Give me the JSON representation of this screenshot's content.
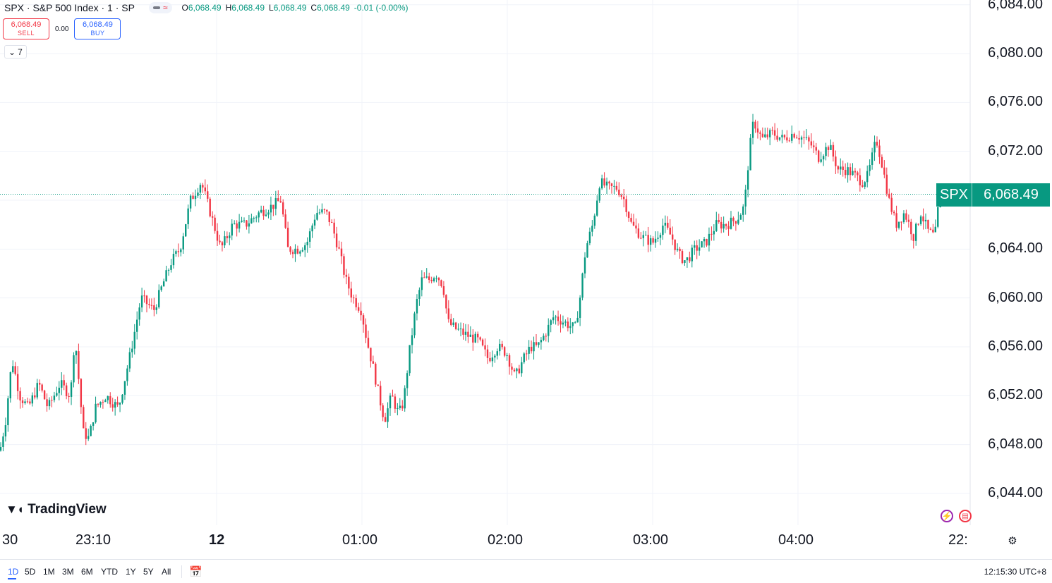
{
  "header": {
    "title": "SPX · S&P 500 Index · 1 · SP",
    "ohlc": [
      {
        "label": "O",
        "value": "6,068.49"
      },
      {
        "label": "H",
        "value": "6,068.49"
      },
      {
        "label": "L",
        "value": "6,068.49"
      },
      {
        "label": "C",
        "value": "6,068.49"
      }
    ],
    "change": "-0.01 (-0.00%)"
  },
  "trade": {
    "sell_price": "6,068.49",
    "sell_label": "SELL",
    "spread": "0.00",
    "buy_price": "6,068.49",
    "buy_label": "BUY"
  },
  "indicators_toggle": "7",
  "logo_text": "TradingView",
  "last_price": {
    "symbol": "SPX",
    "value": "6,068.49"
  },
  "price_axis_labels": [
    "6,084.00",
    "6,080.00",
    "6,076.00",
    "6,072.00",
    "6,068.00",
    "6,064.00",
    "6,060.00",
    "6,056.00",
    "6,052.00",
    "6,048.00",
    "6,044.00"
  ],
  "time_axis": [
    {
      "label": "30",
      "bold": false
    },
    {
      "label": "23:10",
      "bold": false
    },
    {
      "label": "12",
      "bold": true
    },
    {
      "label": "01:00",
      "bold": false
    },
    {
      "label": "02:00",
      "bold": false
    },
    {
      "label": "03:00",
      "bold": false
    },
    {
      "label": "04:00",
      "bold": false
    },
    {
      "label": "22:",
      "bold": false
    }
  ],
  "ranges": [
    "1D",
    "5D",
    "1M",
    "3M",
    "6M",
    "YTD",
    "1Y",
    "5Y",
    "All"
  ],
  "active_range": "1D",
  "clock": "12:15:30 UTC+8",
  "colors": {
    "up": "#089981",
    "down": "#f23645",
    "grid": "#f0f3fa",
    "accent": "#2962ff"
  },
  "icons": {
    "flash": "flash-icon",
    "flag": "us-flag-icon",
    "settings": "gear-icon",
    "calendar": "calendar-goto-icon"
  },
  "chart_data": {
    "type": "candlestick",
    "title": "SPX · S&P 500 Index · 1 · SP",
    "y_range": [
      6042.0,
      6084.5
    ],
    "x_labels": [
      "30",
      "23:10",
      "12",
      "01:00",
      "02:00",
      "03:00",
      "04:00",
      "22:"
    ],
    "close_path": [
      [
        0,
        6047.5
      ],
      [
        8,
        6050.0
      ],
      [
        17,
        6055.0
      ],
      [
        28,
        6052.0
      ],
      [
        40,
        6051.0
      ],
      [
        55,
        6053.0
      ],
      [
        68,
        6051.0
      ],
      [
        85,
        6053.0
      ],
      [
        100,
        6052.0
      ],
      [
        106,
        6057.0
      ],
      [
        118,
        6049.0
      ],
      [
        126,
        6048.5
      ],
      [
        135,
        6051.0
      ],
      [
        150,
        6052.0
      ],
      [
        168,
        6051.0
      ],
      [
        185,
        6055.5
      ],
      [
        200,
        6060.0
      ],
      [
        218,
        6059.0
      ],
      [
        230,
        6061.0
      ],
      [
        243,
        6063.0
      ],
      [
        255,
        6064.0
      ],
      [
        270,
        6068.0
      ],
      [
        285,
        6069.5
      ],
      [
        298,
        6067.0
      ],
      [
        313,
        6064.0
      ],
      [
        330,
        6066.0
      ],
      [
        348,
        6066.0
      ],
      [
        368,
        6067.0
      ],
      [
        385,
        6067.5
      ],
      [
        398,
        6068.0
      ],
      [
        408,
        6064.0
      ],
      [
        422,
        6064.0
      ],
      [
        435,
        6064.5
      ],
      [
        448,
        6067.0
      ],
      [
        462,
        6067.0
      ],
      [
        470,
        6066.0
      ],
      [
        480,
        6064.0
      ],
      [
        490,
        6061.5
      ],
      [
        500,
        6060.0
      ],
      [
        512,
        6059.0
      ],
      [
        520,
        6056.5
      ],
      [
        530,
        6054.0
      ],
      [
        537,
        6052.0
      ],
      [
        545,
        6050.0
      ],
      [
        555,
        6052.0
      ],
      [
        565,
        6050.5
      ],
      [
        572,
        6051.5
      ],
      [
        580,
        6055.5
      ],
      [
        590,
        6059.5
      ],
      [
        598,
        6061.5
      ],
      [
        608,
        6061.5
      ],
      [
        618,
        6062.0
      ],
      [
        628,
        6061.0
      ],
      [
        635,
        6058.0
      ],
      [
        645,
        6057.5
      ],
      [
        660,
        6057.0
      ],
      [
        678,
        6056.5
      ],
      [
        692,
        6055.0
      ],
      [
        705,
        6056.0
      ],
      [
        718,
        6055.5
      ],
      [
        730,
        6053.5
      ],
      [
        742,
        6055.0
      ],
      [
        752,
        6056.0
      ],
      [
        762,
        6056.0
      ],
      [
        772,
        6057.0
      ],
      [
        785,
        6058.5
      ],
      [
        800,
        6058.0
      ],
      [
        815,
        6057.5
      ],
      [
        822,
        6060.0
      ],
      [
        830,
        6064.0
      ],
      [
        840,
        6066.0
      ],
      [
        850,
        6069.5
      ],
      [
        862,
        6069.0
      ],
      [
        875,
        6069.0
      ],
      [
        885,
        6068.0
      ],
      [
        895,
        6066.0
      ],
      [
        910,
        6065.0
      ],
      [
        925,
        6064.5
      ],
      [
        940,
        6066.0
      ],
      [
        952,
        6065.0
      ],
      [
        962,
        6063.5
      ],
      [
        972,
        6063.0
      ],
      [
        985,
        6064.0
      ],
      [
        1000,
        6064.5
      ],
      [
        1015,
        6066.0
      ],
      [
        1030,
        6066.0
      ],
      [
        1045,
        6066.5
      ],
      [
        1055,
        6067.5
      ],
      [
        1062,
        6072.0
      ],
      [
        1068,
        6074.5
      ],
      [
        1080,
        6073.0
      ],
      [
        1095,
        6073.5
      ],
      [
        1110,
        6073.0
      ],
      [
        1125,
        6073.5
      ],
      [
        1140,
        6073.0
      ],
      [
        1150,
        6072.5
      ],
      [
        1160,
        6071.5
      ],
      [
        1175,
        6072.5
      ],
      [
        1188,
        6070.5
      ],
      [
        1200,
        6070.5
      ],
      [
        1212,
        6070.0
      ],
      [
        1222,
        6069.5
      ],
      [
        1230,
        6070.0
      ],
      [
        1242,
        6073.0
      ],
      [
        1250,
        6071.0
      ],
      [
        1260,
        6068.0
      ],
      [
        1270,
        6066.0
      ],
      [
        1282,
        6067.0
      ],
      [
        1295,
        6065.0
      ],
      [
        1305,
        6067.0
      ],
      [
        1315,
        6065.5
      ],
      [
        1325,
        6065.0
      ],
      [
        1332,
        6068.5
      ],
      [
        1338,
        6068.5
      ]
    ]
  }
}
